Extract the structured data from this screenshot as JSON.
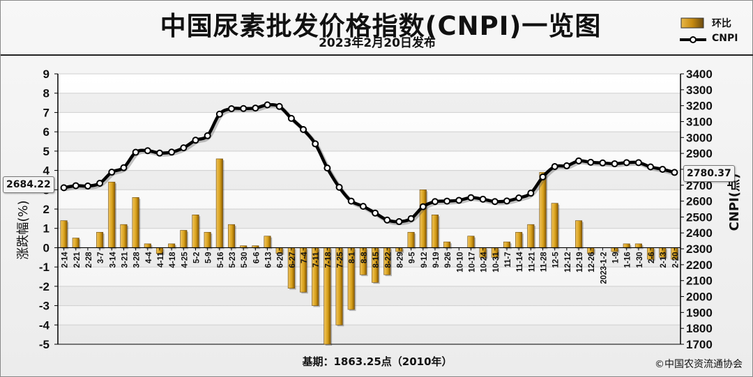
{
  "header": {
    "title": "中国尿素批发价格指数(CNPI)一览图",
    "subtitle": "2023年2月20日发布"
  },
  "legend": {
    "bar_label": "环比",
    "line_label": "CNPI"
  },
  "footer": {
    "base": "基期：1863.25点（2010年）",
    "copyright": "©中国农资流通协会"
  },
  "callouts": {
    "start": "2684.22",
    "end": "2780.37"
  },
  "colors": {
    "bar_fill": "#d9a21b",
    "bar_dark": "#8a5a00",
    "line": "#000000",
    "marker_fill": "#ffffff",
    "grid": "#cfcfcf",
    "band": "#e2e2e2"
  },
  "chart_data": {
    "type": "bar+line",
    "categories": [
      "2-14",
      "2-21",
      "2-28",
      "3-7",
      "3-14",
      "3-21",
      "3-28",
      "4-4",
      "4-11",
      "4-18",
      "4-25",
      "5-2",
      "5-9",
      "5-16",
      "5-23",
      "5-30",
      "6-6",
      "6-13",
      "6-20",
      "6-27",
      "7-4",
      "7-11",
      "7-18",
      "7-25",
      "8-1",
      "8-8",
      "8-15",
      "8-22",
      "8-29",
      "9-5",
      "9-12",
      "9-19",
      "9-26",
      "10-10",
      "10-17",
      "10-24",
      "10-31",
      "11-7",
      "11-14",
      "11-21",
      "11-28",
      "12-5",
      "12-12",
      "12-19",
      "12-26",
      "2023-1-2",
      "1-9",
      "1-16",
      "1-30",
      "2-6",
      "2-13",
      "2-20"
    ],
    "series": [
      {
        "name": "环比",
        "axis": "left",
        "values": [
          1.4,
          0.5,
          0.0,
          0.8,
          3.4,
          1.2,
          2.6,
          0.2,
          -0.3,
          0.2,
          0.9,
          1.7,
          0.8,
          4.6,
          1.2,
          0.1,
          0.1,
          0.6,
          -0.3,
          -2.1,
          -2.3,
          -3.0,
          -5.0,
          -4.0,
          -3.2,
          -1.4,
          -1.8,
          -1.4,
          -0.2,
          0.8,
          3.0,
          1.7,
          0.3,
          0.0,
          0.6,
          -0.5,
          -0.5,
          0.3,
          0.8,
          1.2,
          3.9,
          2.3,
          0.0,
          1.4,
          -0.3,
          0.0,
          -0.2,
          0.2,
          0.2,
          -0.6,
          -0.5,
          -0.6
        ]
      },
      {
        "name": "CNPI",
        "axis": "right",
        "values": [
          2684.22,
          2697,
          2695,
          2712,
          2782,
          2810,
          2907,
          2917,
          2902,
          2908,
          2935,
          2983,
          3011,
          3147,
          3181,
          3182,
          3185,
          3205,
          3195,
          3120,
          3050,
          2960,
          2808,
          2687,
          2600,
          2567,
          2525,
          2481,
          2471,
          2490,
          2565,
          2597,
          2600,
          2605,
          2622,
          2612,
          2597,
          2601,
          2620,
          2650,
          2752,
          2817,
          2822,
          2853,
          2844,
          2840,
          2835,
          2842,
          2842,
          2815,
          2800,
          2780.37
        ]
      }
    ],
    "y_left": {
      "label": "涨跌幅(%)",
      "min": -5,
      "max": 9,
      "ticks": [
        -5,
        -4,
        -3,
        -2,
        -1,
        0,
        1,
        2,
        3,
        4,
        5,
        6,
        7,
        8,
        9
      ]
    },
    "y_right": {
      "label": "CNPI(点)",
      "min": 1700,
      "max": 3400,
      "ticks": [
        1700,
        1800,
        1900,
        2000,
        2100,
        2200,
        2300,
        2400,
        2500,
        2600,
        2700,
        2800,
        2900,
        3000,
        3100,
        3200,
        3300,
        3400
      ]
    },
    "grid": true,
    "legend_position": "top-right"
  }
}
